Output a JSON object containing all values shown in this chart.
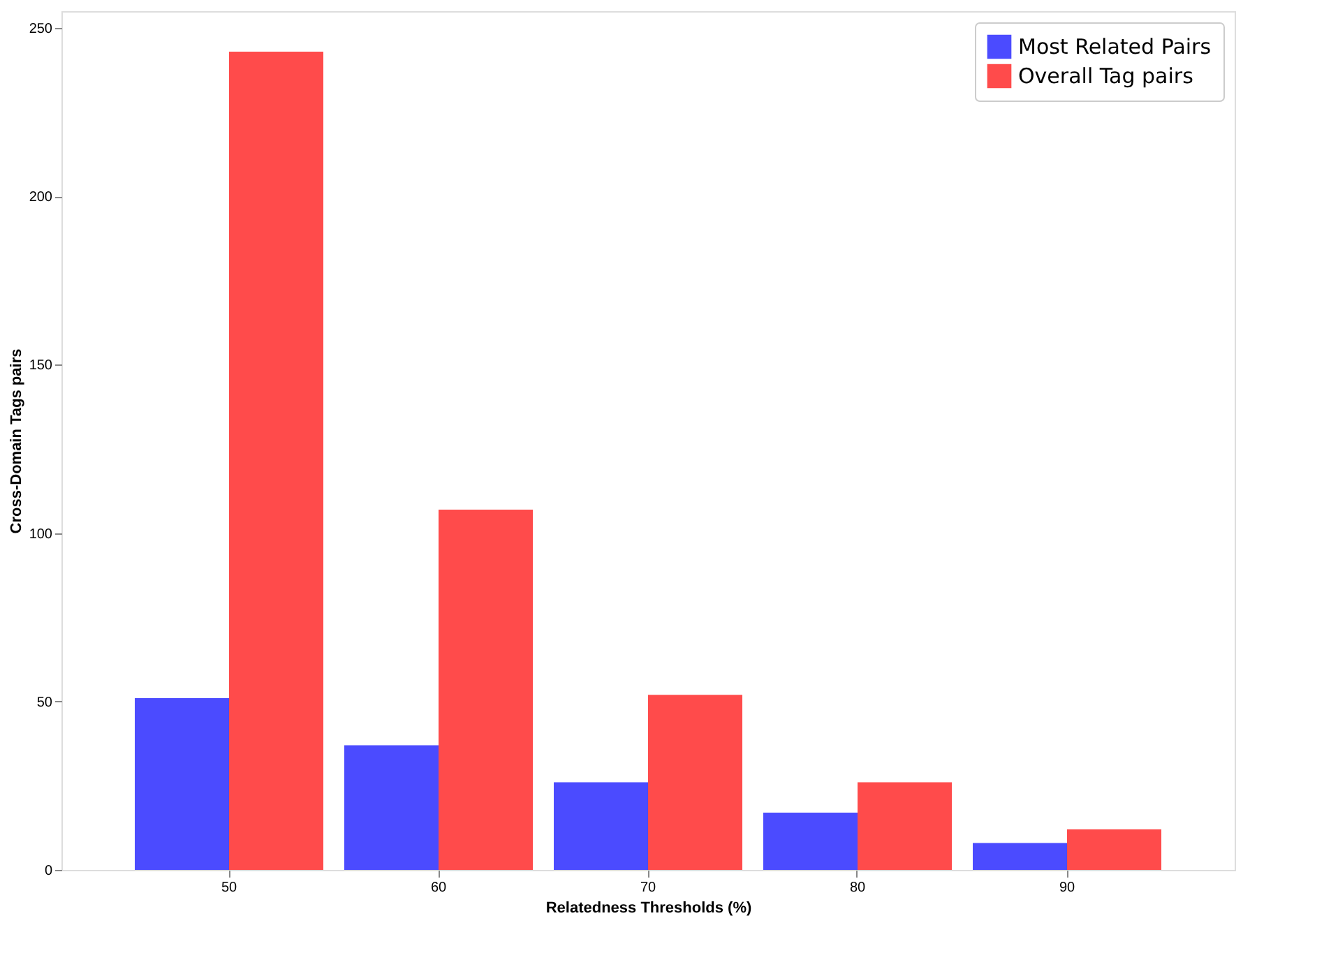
{
  "chart_data": {
    "type": "bar",
    "xlabel": "Relatedness Thresholds (%)",
    "ylabel": "Cross-Domain Tags pairs",
    "categories": [
      "50",
      "60",
      "70",
      "80",
      "90"
    ],
    "series": [
      {
        "name": "Most Related Pairs",
        "color": "#4b4bff",
        "values": [
          51,
          37,
          26,
          17,
          8
        ]
      },
      {
        "name": "Overall Tag pairs",
        "color": "#ff4b4b",
        "values": [
          243,
          107,
          52,
          26,
          12
        ]
      }
    ],
    "ylim": [
      0,
      255
    ],
    "yticks": [
      0,
      50,
      100,
      150,
      200,
      250
    ],
    "grid": false,
    "legend": "top right"
  }
}
